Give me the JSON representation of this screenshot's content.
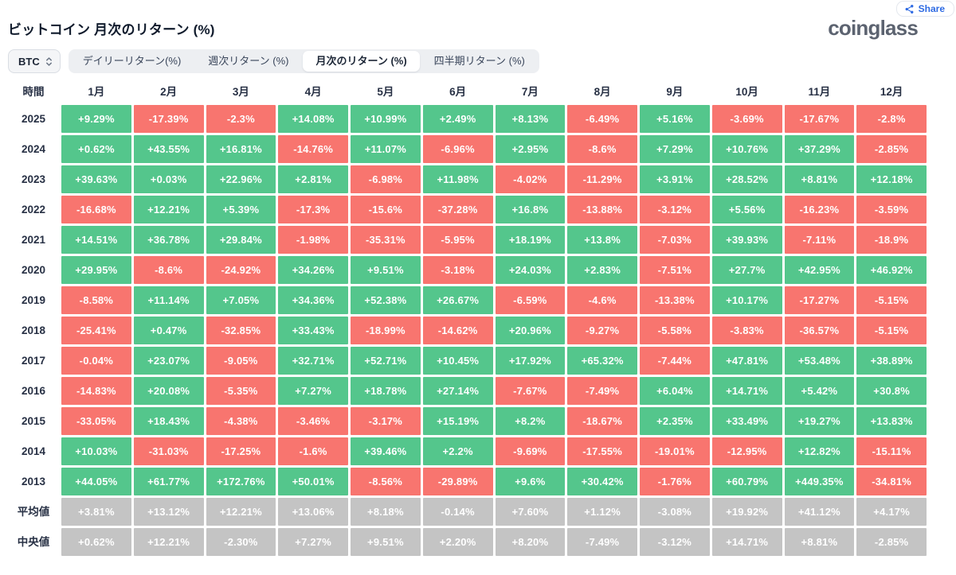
{
  "header": {
    "title": "ビットコイン 月次のリターン (%)",
    "logo": "coinglass",
    "share_label": "Share"
  },
  "controls": {
    "coin": "BTC",
    "tabs": [
      {
        "id": "daily",
        "label": "デイリーリターン(%)",
        "active": false
      },
      {
        "id": "weekly",
        "label": "週次リターン (%)",
        "active": false
      },
      {
        "id": "monthly",
        "label": "月次のリターン (%)",
        "active": true
      },
      {
        "id": "quarterly",
        "label": "四半期リターン (%)",
        "active": false
      }
    ]
  },
  "colors": {
    "positive": "#54c68c",
    "negative": "#f8756f",
    "summary": "#c4c4c4",
    "accent_blue": "#2d6ae3"
  },
  "table": {
    "time_header": "時間",
    "months": [
      "1月",
      "2月",
      "3月",
      "4月",
      "5月",
      "6月",
      "7月",
      "8月",
      "9月",
      "10月",
      "11月",
      "12月"
    ],
    "rows": [
      {
        "label": "2025",
        "kind": "year",
        "values": [
          "+9.29%",
          "-17.39%",
          "-2.3%",
          "+14.08%",
          "+10.99%",
          "+2.49%",
          "+8.13%",
          "-6.49%",
          "+5.16%",
          "-3.69%",
          "-17.67%",
          "-2.8%"
        ]
      },
      {
        "label": "2024",
        "kind": "year",
        "values": [
          "+0.62%",
          "+43.55%",
          "+16.81%",
          "-14.76%",
          "+11.07%",
          "-6.96%",
          "+2.95%",
          "-8.6%",
          "+7.29%",
          "+10.76%",
          "+37.29%",
          "-2.85%"
        ]
      },
      {
        "label": "2023",
        "kind": "year",
        "values": [
          "+39.63%",
          "+0.03%",
          "+22.96%",
          "+2.81%",
          "-6.98%",
          "+11.98%",
          "-4.02%",
          "-11.29%",
          "+3.91%",
          "+28.52%",
          "+8.81%",
          "+12.18%"
        ]
      },
      {
        "label": "2022",
        "kind": "year",
        "values": [
          "-16.68%",
          "+12.21%",
          "+5.39%",
          "-17.3%",
          "-15.6%",
          "-37.28%",
          "+16.8%",
          "-13.88%",
          "-3.12%",
          "+5.56%",
          "-16.23%",
          "-3.59%"
        ]
      },
      {
        "label": "2021",
        "kind": "year",
        "values": [
          "+14.51%",
          "+36.78%",
          "+29.84%",
          "-1.98%",
          "-35.31%",
          "-5.95%",
          "+18.19%",
          "+13.8%",
          "-7.03%",
          "+39.93%",
          "-7.11%",
          "-18.9%"
        ]
      },
      {
        "label": "2020",
        "kind": "year",
        "values": [
          "+29.95%",
          "-8.6%",
          "-24.92%",
          "+34.26%",
          "+9.51%",
          "-3.18%",
          "+24.03%",
          "+2.83%",
          "-7.51%",
          "+27.7%",
          "+42.95%",
          "+46.92%"
        ]
      },
      {
        "label": "2019",
        "kind": "year",
        "values": [
          "-8.58%",
          "+11.14%",
          "+7.05%",
          "+34.36%",
          "+52.38%",
          "+26.67%",
          "-6.59%",
          "-4.6%",
          "-13.38%",
          "+10.17%",
          "-17.27%",
          "-5.15%"
        ]
      },
      {
        "label": "2018",
        "kind": "year",
        "values": [
          "-25.41%",
          "+0.47%",
          "-32.85%",
          "+33.43%",
          "-18.99%",
          "-14.62%",
          "+20.96%",
          "-9.27%",
          "-5.58%",
          "-3.83%",
          "-36.57%",
          "-5.15%"
        ]
      },
      {
        "label": "2017",
        "kind": "year",
        "values": [
          "-0.04%",
          "+23.07%",
          "-9.05%",
          "+32.71%",
          "+52.71%",
          "+10.45%",
          "+17.92%",
          "+65.32%",
          "-7.44%",
          "+47.81%",
          "+53.48%",
          "+38.89%"
        ]
      },
      {
        "label": "2016",
        "kind": "year",
        "values": [
          "-14.83%",
          "+20.08%",
          "-5.35%",
          "+7.27%",
          "+18.78%",
          "+27.14%",
          "-7.67%",
          "-7.49%",
          "+6.04%",
          "+14.71%",
          "+5.42%",
          "+30.8%"
        ]
      },
      {
        "label": "2015",
        "kind": "year",
        "values": [
          "-33.05%",
          "+18.43%",
          "-4.38%",
          "-3.46%",
          "-3.17%",
          "+15.19%",
          "+8.2%",
          "-18.67%",
          "+2.35%",
          "+33.49%",
          "+19.27%",
          "+13.83%"
        ]
      },
      {
        "label": "2014",
        "kind": "year",
        "values": [
          "+10.03%",
          "-31.03%",
          "-17.25%",
          "-1.6%",
          "+39.46%",
          "+2.2%",
          "-9.69%",
          "-17.55%",
          "-19.01%",
          "-12.95%",
          "+12.82%",
          "-15.11%"
        ]
      },
      {
        "label": "2013",
        "kind": "year",
        "values": [
          "+44.05%",
          "+61.77%",
          "+172.76%",
          "+50.01%",
          "-8.56%",
          "-29.89%",
          "+9.6%",
          "+30.42%",
          "-1.76%",
          "+60.79%",
          "+449.35%",
          "-34.81%"
        ]
      },
      {
        "label": "平均値",
        "kind": "summary",
        "values": [
          "+3.81%",
          "+13.12%",
          "+12.21%",
          "+13.06%",
          "+8.18%",
          "-0.14%",
          "+7.60%",
          "+1.12%",
          "-3.08%",
          "+19.92%",
          "+41.12%",
          "+4.17%"
        ]
      },
      {
        "label": "中央値",
        "kind": "summary",
        "values": [
          "+0.62%",
          "+12.21%",
          "-2.30%",
          "+7.27%",
          "+9.51%",
          "+2.20%",
          "+8.20%",
          "-7.49%",
          "-3.12%",
          "+14.71%",
          "+8.81%",
          "-2.85%"
        ]
      }
    ]
  }
}
